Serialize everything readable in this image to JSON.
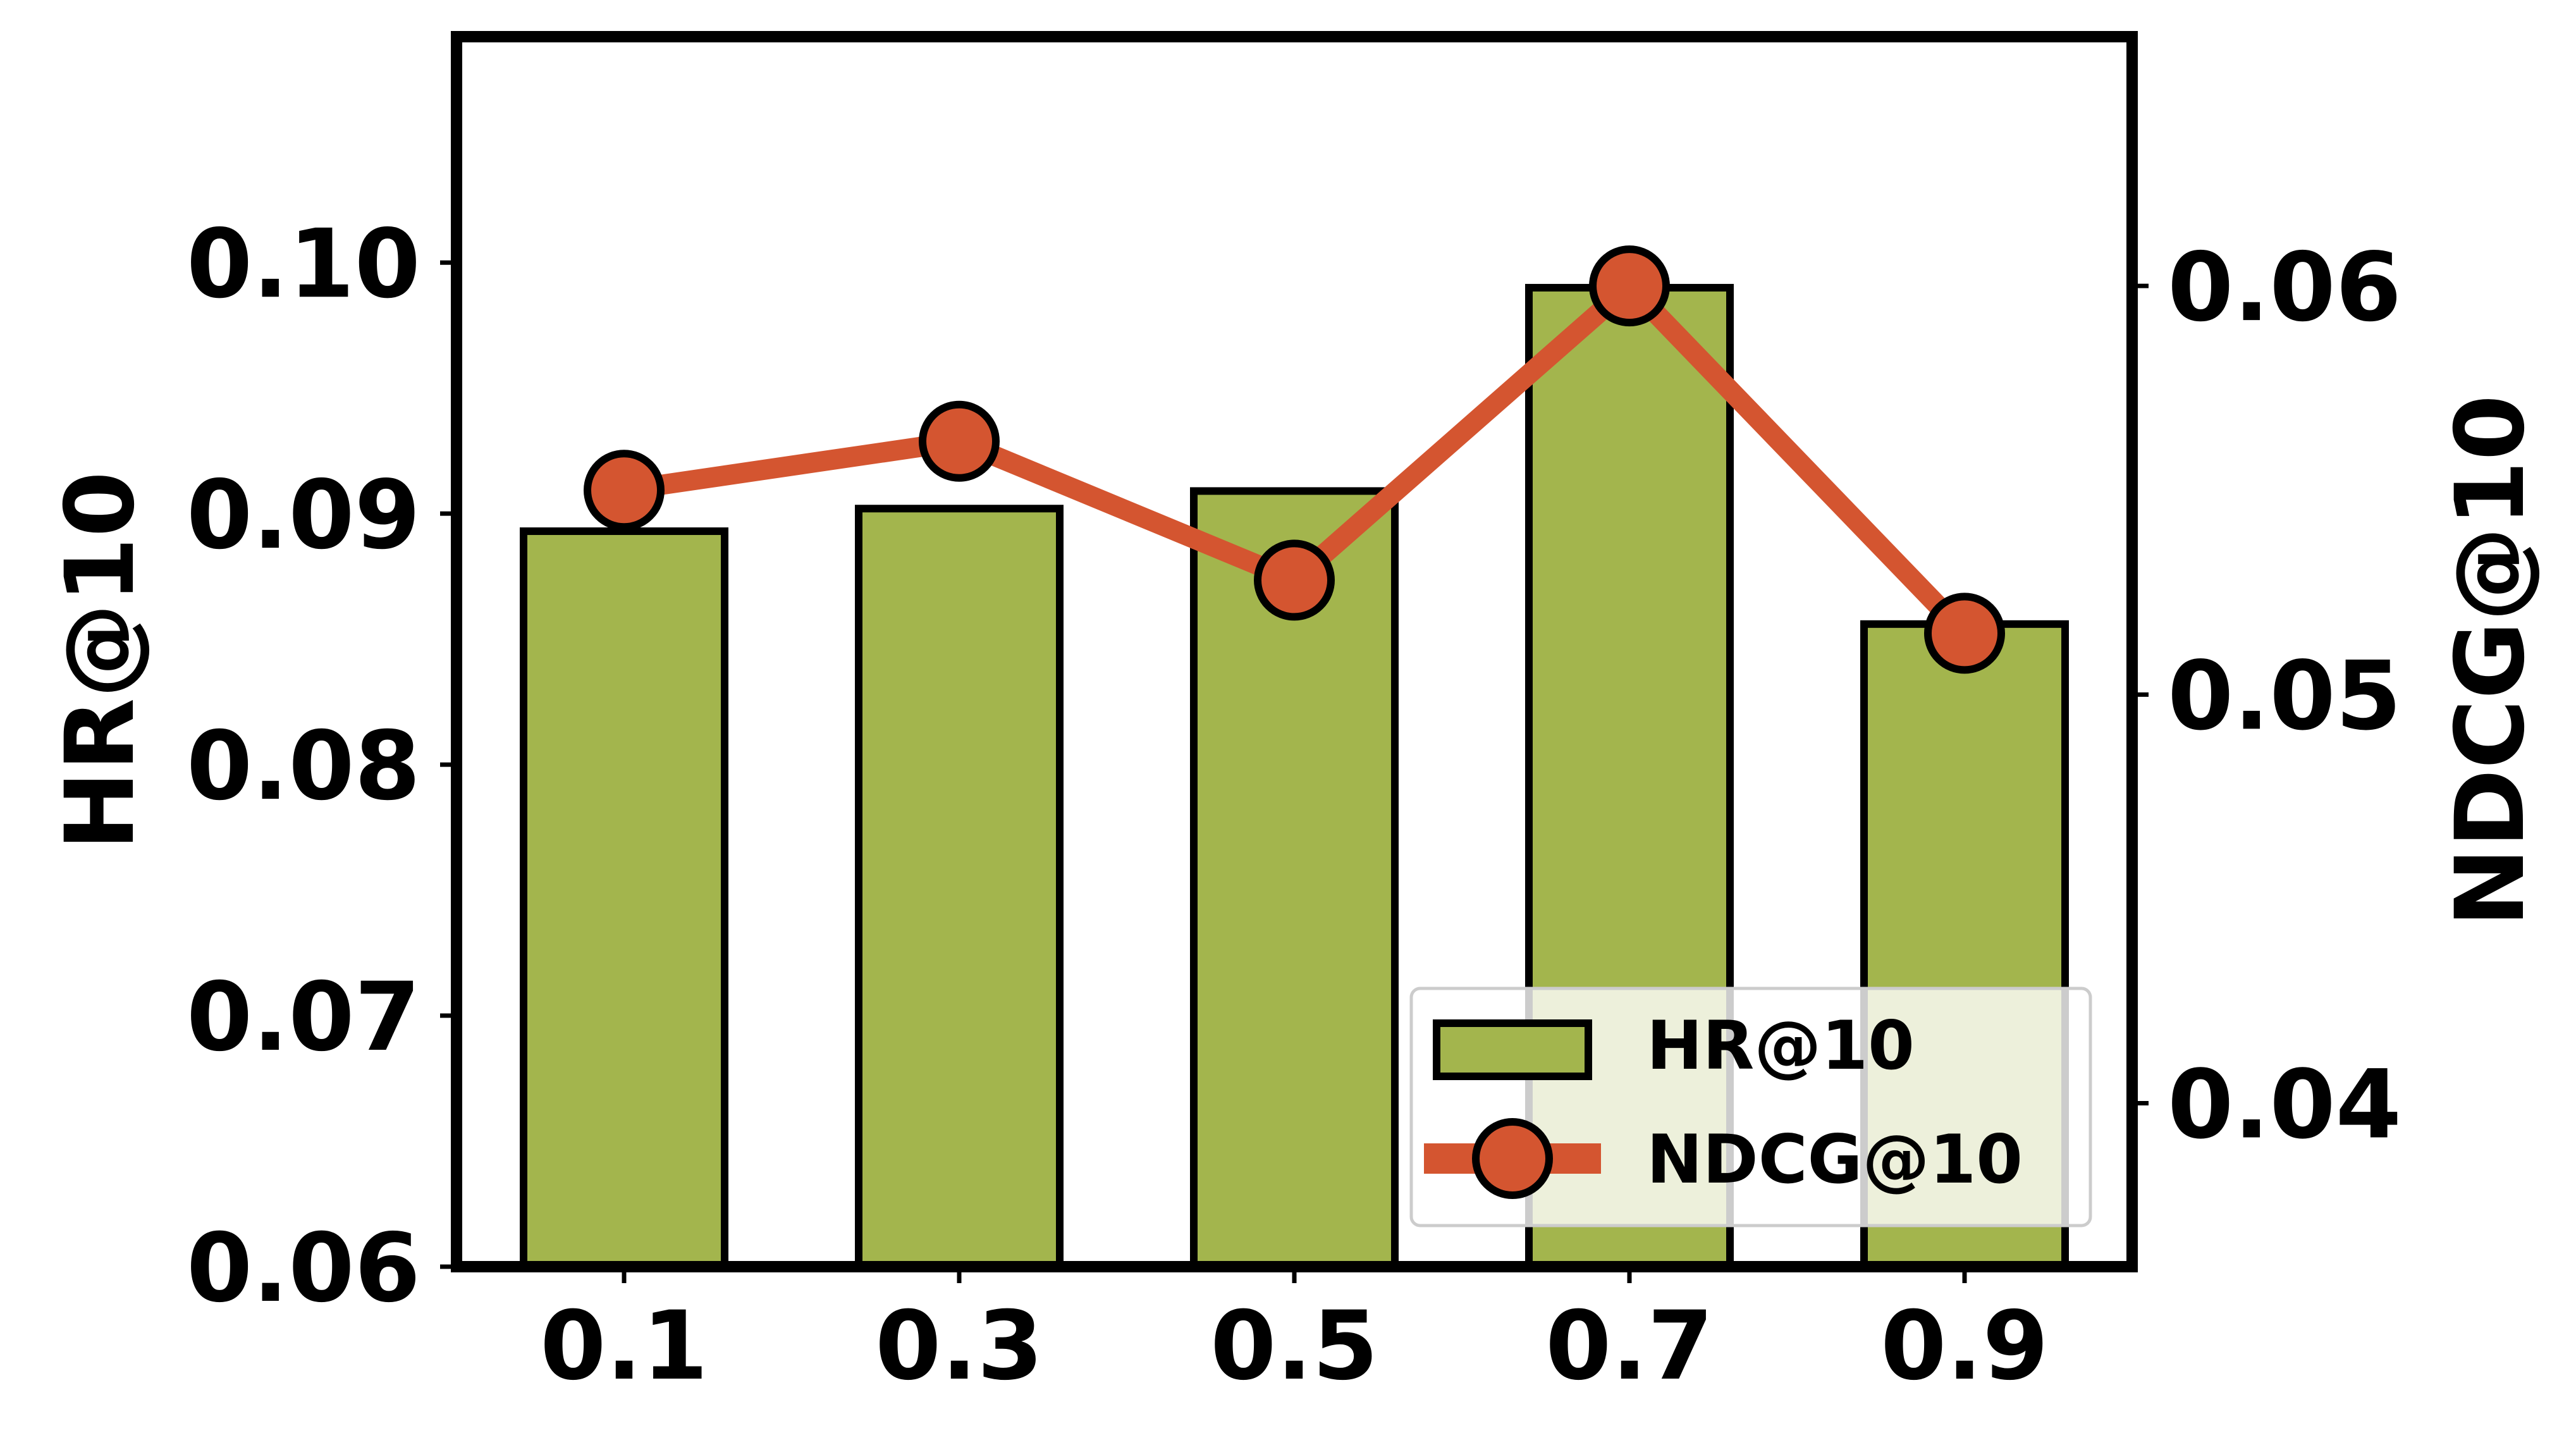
{
  "chart_data": {
    "type": "bar",
    "categories": [
      "0.1",
      "0.3",
      "0.5",
      "0.7",
      "0.9"
    ],
    "series": [
      {
        "name": "HR@10",
        "type": "bar",
        "axis": "left",
        "color": "#a3b54d",
        "edge_color": "#000000",
        "values": [
          0.0893,
          0.0902,
          0.0909,
          0.099,
          0.0856
        ]
      },
      {
        "name": "NDCG@10",
        "type": "line",
        "axis": "right",
        "color": "#d45530",
        "marker": "circle",
        "values": [
          0.055,
          0.0562,
          0.0528,
          0.06,
          0.0515
        ]
      }
    ],
    "title": "",
    "xlabel": "",
    "ylabel": "HR@10",
    "y2label": "NDCG@10",
    "ylim": [
      0.06,
      0.109
    ],
    "y2lim": [
      0.036,
      0.0661
    ],
    "yticks": [
      "0.06",
      "0.07",
      "0.08",
      "0.09",
      "0.10"
    ],
    "y2ticks": [
      "0.04",
      "0.05",
      "0.06"
    ],
    "grid": false,
    "legend_position": "lower-right"
  }
}
